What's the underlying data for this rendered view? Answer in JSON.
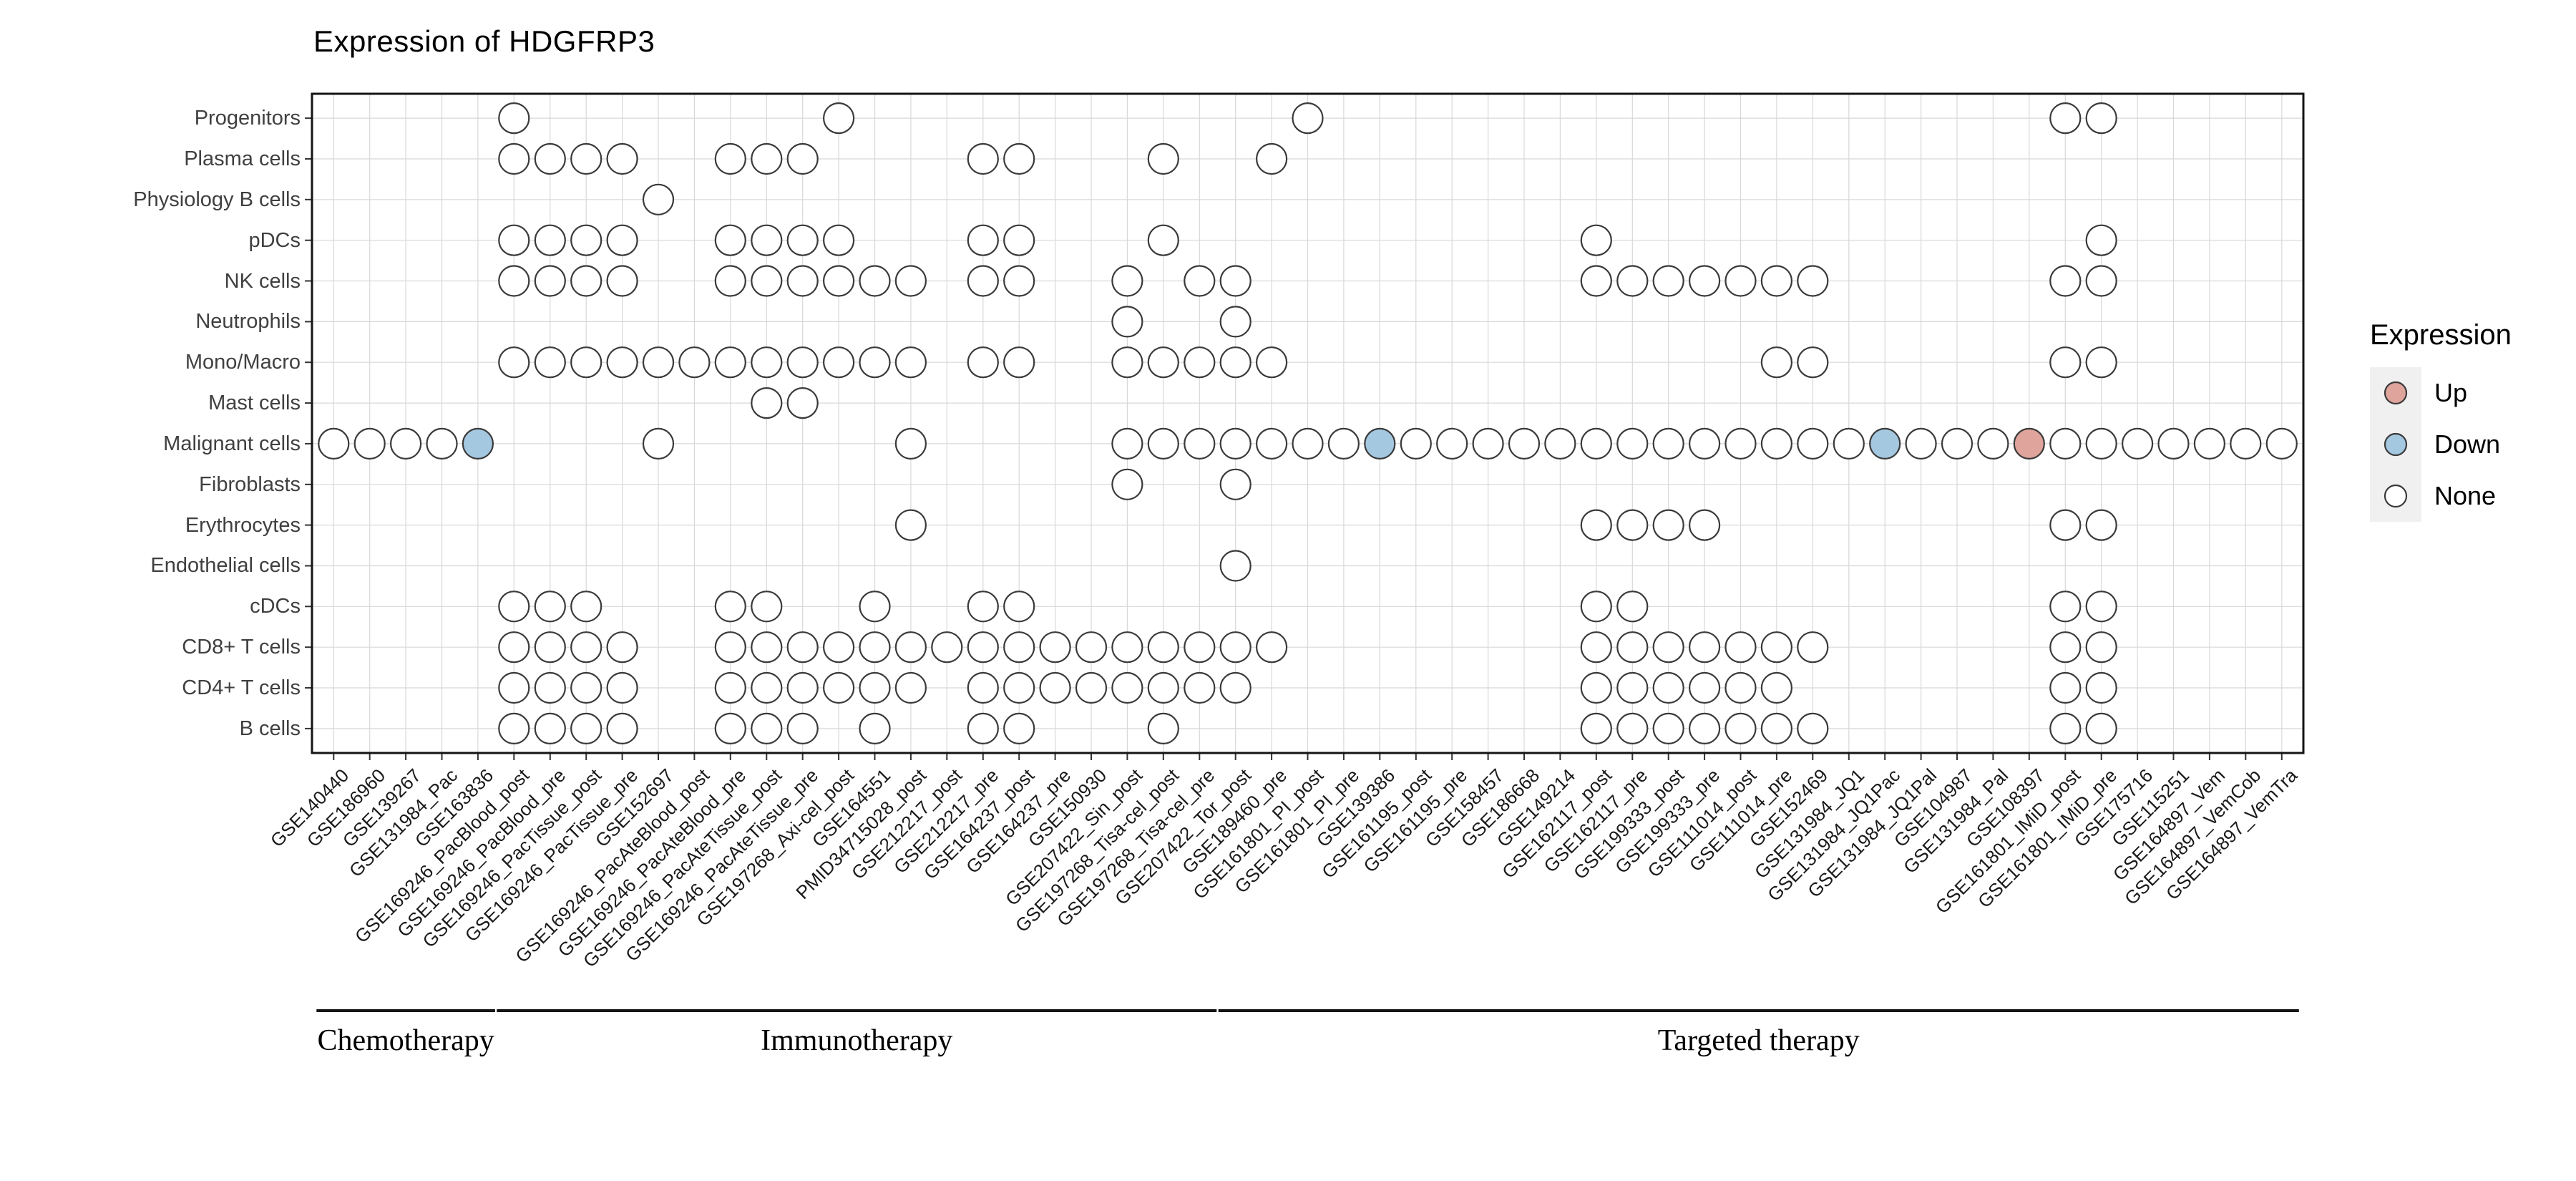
{
  "title": "Expression of HDGFRP3",
  "chart_data": {
    "type": "dotplot",
    "title": "Expression of HDGFRP3",
    "rows": [
      "Progenitors",
      "Plasma cells",
      "Physiology B cells",
      "pDCs",
      "NK cells",
      "Neutrophils",
      "Mono/Macro",
      "Mast cells",
      "Malignant cells",
      "Fibroblasts",
      "Erythrocytes",
      "Endothelial cells",
      "cDCs",
      "CD8+ T cells",
      "CD4+ T cells",
      "B cells"
    ],
    "columns": [
      "GSE140440",
      "GSE186960",
      "GSE139267",
      "GSE131984_Pac",
      "GSE163836",
      "GSE169246_PacBlood_post",
      "GSE169246_PacBlood_pre",
      "GSE169246_PacTissue_post",
      "GSE169246_PacTissue_pre",
      "GSE152697",
      "GSE169246_PacAteBlood_post",
      "GSE169246_PacAteBlood_pre",
      "GSE169246_PacAteTissue_post",
      "GSE169246_PacAteTissue_pre",
      "GSE197268_Axi-cel_post",
      "GSE164551",
      "PMID34715028_post",
      "GSE212217_post",
      "GSE212217_pre",
      "GSE164237_post",
      "GSE164237_pre",
      "GSE150930",
      "GSE207422_Sin_post",
      "GSE197268_Tisa-cel_post",
      "GSE197268_Tisa-cel_pre",
      "GSE207422_Tor_post",
      "GSE189460_pre",
      "GSE161801_PI_post",
      "GSE161801_PI_pre",
      "GSE139386",
      "GSE161195_post",
      "GSE161195_pre",
      "GSE158457",
      "GSE186668",
      "GSE149214",
      "GSE162117_post",
      "GSE162117_pre",
      "GSE199333_post",
      "GSE199333_pre",
      "GSE111014_post",
      "GSE111014_pre",
      "GSE152469",
      "GSE131984_JQ1",
      "GSE131984_JQ1Pac",
      "GSE131984_JQ1Pal",
      "GSE104987",
      "GSE131984_Pal",
      "GSE108397",
      "GSE161801_IMiD_post",
      "GSE161801_IMiD_pre",
      "GSE175716",
      "GSE115251",
      "GSE164897_Vem",
      "GSE164897_VemCob",
      "GSE164897_VemTra"
    ],
    "groups": [
      {
        "label": "Chemotherapy",
        "from": 0,
        "to": 4
      },
      {
        "label": "Immunotherapy",
        "from": 5,
        "to": 24
      },
      {
        "label": "Targeted therapy",
        "from": 25,
        "to": 54
      }
    ],
    "legend": {
      "title": "Expression",
      "items": [
        {
          "label": "Up",
          "state": "up"
        },
        {
          "label": "Down",
          "state": "down"
        },
        {
          "label": "None",
          "state": "none"
        }
      ]
    },
    "colors": {
      "up": "#dfa49c",
      "down": "#a5c8e1",
      "none": "#ffffff",
      "outline": "#3a3a3a",
      "grid": "#d8d8d8",
      "border": "#141414",
      "legend_key_bg": "#f0f0f0"
    },
    "dots": {
      "Progenitors": {
        "none": [
          5,
          14,
          27,
          48,
          49
        ]
      },
      "Plasma cells": {
        "none": [
          5,
          6,
          7,
          8,
          11,
          12,
          13,
          18,
          19,
          23,
          26
        ]
      },
      "Physiology B cells": {
        "none": [
          9
        ]
      },
      "pDCs": {
        "none": [
          5,
          6,
          7,
          8,
          11,
          12,
          13,
          14,
          18,
          19,
          23,
          35,
          49
        ]
      },
      "NK cells": {
        "none": [
          5,
          6,
          7,
          8,
          11,
          12,
          13,
          14,
          15,
          16,
          18,
          19,
          22,
          24,
          25,
          35,
          36,
          37,
          38,
          39,
          40,
          41,
          48,
          49
        ]
      },
      "Neutrophils": {
        "none": [
          22,
          25
        ]
      },
      "Mono/Macro": {
        "none": [
          5,
          6,
          7,
          8,
          9,
          10,
          11,
          12,
          13,
          14,
          15,
          16,
          18,
          19,
          22,
          23,
          24,
          25,
          26,
          40,
          41,
          48,
          49
        ]
      },
      "Mast cells": {
        "none": [
          12,
          13
        ]
      },
      "Malignant cells": {
        "none": [
          0,
          1,
          2,
          3,
          9,
          16,
          22,
          23,
          24,
          25,
          26,
          27,
          28,
          30,
          31,
          32,
          33,
          34,
          35,
          36,
          37,
          38,
          39,
          40,
          41,
          42,
          44,
          45,
          46,
          48,
          49,
          50,
          51,
          52,
          53,
          54
        ],
        "down": [
          4,
          29,
          43
        ],
        "up": [
          47
        ]
      },
      "Fibroblasts": {
        "none": [
          22,
          25
        ]
      },
      "Erythrocytes": {
        "none": [
          16,
          35,
          36,
          37,
          38,
          48,
          49
        ]
      },
      "Endothelial cells": {
        "none": [
          25
        ]
      },
      "cDCs": {
        "none": [
          5,
          6,
          7,
          11,
          12,
          15,
          18,
          19,
          35,
          36,
          48,
          49
        ]
      },
      "CD8+ T cells": {
        "none": [
          5,
          6,
          7,
          8,
          11,
          12,
          13,
          14,
          15,
          16,
          17,
          18,
          19,
          20,
          21,
          22,
          23,
          24,
          25,
          26,
          35,
          36,
          37,
          38,
          39,
          40,
          41,
          48,
          49
        ]
      },
      "CD4+ T cells": {
        "none": [
          5,
          6,
          7,
          8,
          11,
          12,
          13,
          14,
          15,
          16,
          18,
          19,
          20,
          21,
          22,
          23,
          24,
          25,
          35,
          36,
          37,
          38,
          39,
          40,
          48,
          49
        ]
      },
      "B cells": {
        "none": [
          5,
          6,
          7,
          8,
          11,
          12,
          13,
          15,
          18,
          19,
          23,
          35,
          36,
          37,
          38,
          39,
          40,
          41,
          48,
          49
        ]
      }
    }
  }
}
